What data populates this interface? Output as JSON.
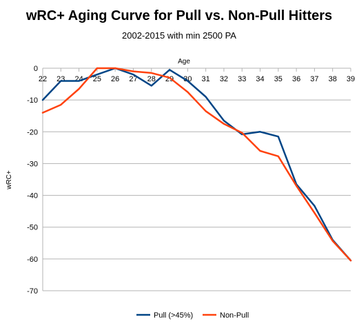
{
  "chart_data": {
    "type": "line",
    "title": "wRC+ Aging Curve for Pull vs. Non-Pull Hitters",
    "subtitle": "2002-2015 with min 2500 PA",
    "xlabel": "Age",
    "ylabel": "wRC+",
    "x": [
      22,
      23,
      24,
      25,
      26,
      27,
      28,
      29,
      30,
      31,
      32,
      33,
      34,
      35,
      36,
      37,
      38,
      39
    ],
    "xlim": [
      22,
      39
    ],
    "ylim": [
      -70,
      0
    ],
    "yticks": [
      0,
      -10,
      -20,
      -30,
      -40,
      -50,
      -60,
      -70
    ],
    "xaxis_position": "top",
    "grid": "horizontal",
    "legend_position": "bottom",
    "series": [
      {
        "name": "Pull (>45%)",
        "color": "#004586",
        "values": [
          -10,
          -4,
          -4,
          -2,
          0,
          -2,
          -5.5,
          -0.5,
          -4,
          -9,
          -16.5,
          -20.8,
          -20,
          -21.5,
          -36.5,
          -43.3,
          -54,
          -60.5
        ]
      },
      {
        "name": "Non-Pull",
        "color": "#ff420e",
        "values": [
          -14,
          -11.5,
          -6.5,
          0,
          0,
          -1,
          -1.5,
          -3,
          -7.5,
          -13.5,
          -17.5,
          -20.3,
          -26,
          -27.7,
          -37,
          -45.5,
          -54.3,
          -60.5
        ]
      }
    ]
  }
}
